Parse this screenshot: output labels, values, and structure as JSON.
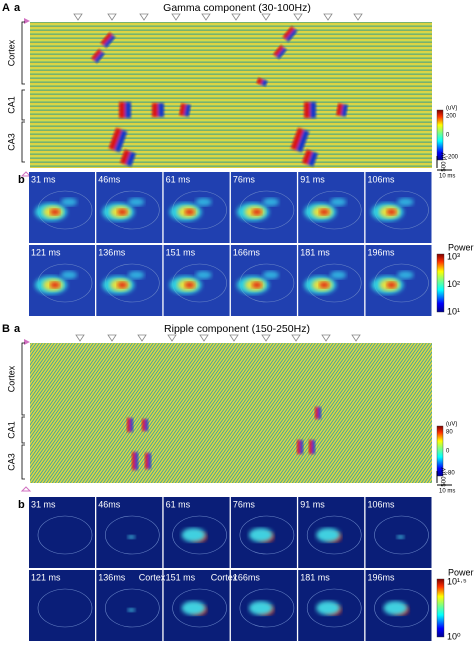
{
  "panelA": {
    "label": "A",
    "sublabel_a": "a",
    "title": "Gamma component (30-100Hz)",
    "regions": [
      "Cortex",
      "CA1",
      "CA3"
    ],
    "colorbar": {
      "unit": "(uV)",
      "ticks": [
        "200",
        "0",
        "-200"
      ]
    },
    "scalebar_v": "500 µV",
    "scalebar_h": "10 ms",
    "sublabel_b": "b",
    "frames": [
      "31 ms",
      "46ms",
      "61 ms",
      "76ms",
      "91 ms",
      "106ms",
      "121 ms",
      "136ms",
      "151 ms",
      "166ms",
      "181 ms",
      "196ms"
    ],
    "power": {
      "title": "Power",
      "ticks": [
        "10³",
        "10²",
        "10¹"
      ]
    }
  },
  "panelB": {
    "label": "B",
    "sublabel_a": "a",
    "title": "Ripple component (150-250Hz)",
    "regions": [
      "Cortex",
      "CA1",
      "CA3"
    ],
    "colorbar": {
      "unit": "(uV)",
      "ticks": [
        "80",
        "0",
        "-80"
      ]
    },
    "scalebar_v": "500 µV",
    "scalebar_h": "10 ms",
    "sublabel_b": "b",
    "frames": [
      "31 ms",
      "46ms",
      "61 ms",
      "76ms",
      "91 ms",
      "106ms",
      "121 ms",
      "136ms",
      "151 ms",
      "166ms",
      "181 ms",
      "196ms"
    ],
    "annotations": [
      "Cortex",
      "Cortex"
    ],
    "power": {
      "title": "Power",
      "ticks": [
        "10¹·⁵",
        "10⁰"
      ]
    }
  }
}
